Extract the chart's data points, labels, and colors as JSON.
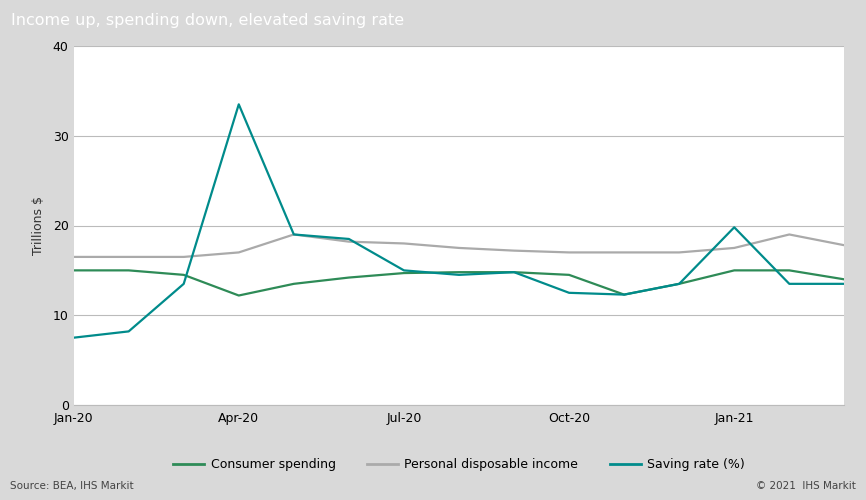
{
  "title": "Income up, spending down, elevated saving rate",
  "ylabel": "Trillions $",
  "source_text": "Source: BEA, IHS Markit",
  "copyright_text": "© 2021  IHS Markit",
  "ylim": [
    0,
    40
  ],
  "yticks": [
    0,
    10,
    20,
    30,
    40
  ],
  "title_bg_color": "#797979",
  "title_text_color": "#ffffff",
  "plot_bg_color": "#ffffff",
  "outer_bg_color": "#d9d9d9",
  "grid_color": "#bbbbbb",
  "x_labels": [
    "Jan-20",
    "Apr-20",
    "Jul-20",
    "Oct-20",
    "Jan-21"
  ],
  "x_tick_positions": [
    0,
    3,
    6,
    9,
    12
  ],
  "consumer_spending": {
    "label": "Consumer spending",
    "color": "#2e8b57",
    "values": [
      15.0,
      15.0,
      14.5,
      12.2,
      13.5,
      14.2,
      14.7,
      14.8,
      14.8,
      14.5,
      12.3,
      13.5,
      15.0,
      15.0,
      14.0
    ]
  },
  "disposable_income": {
    "label": "Personal disposable income",
    "color": "#aaaaaa",
    "values": [
      16.5,
      16.5,
      16.5,
      17.0,
      19.0,
      18.2,
      18.0,
      17.5,
      17.2,
      17.0,
      17.0,
      17.0,
      17.5,
      19.0,
      17.8
    ]
  },
  "saving_rate": {
    "label": "Saving rate (%)",
    "color": "#008b8b",
    "values": [
      7.5,
      8.2,
      13.5,
      33.5,
      19.0,
      18.5,
      15.0,
      14.5,
      14.8,
      12.5,
      12.3,
      13.5,
      19.8,
      13.5,
      13.5
    ]
  }
}
